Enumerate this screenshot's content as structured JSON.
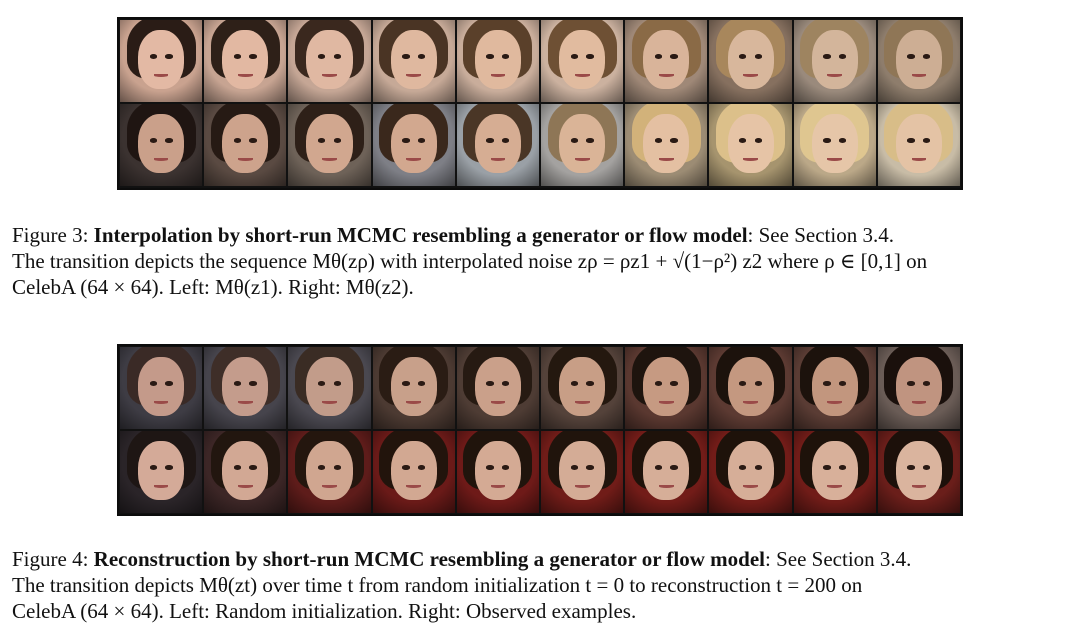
{
  "figure3": {
    "caption_label": "Figure 3:",
    "caption_title": "Interpolation by short-run MCMC resembling a generator or flow model",
    "caption_see": ": See Section 3.4.",
    "caption_line2": "The transition depicts the sequence Mθ(zρ) with interpolated noise zρ = ρz1 + √(1−ρ²) z2 where ρ ∈ [0,1] on",
    "caption_line3": "CelebA (64 × 64). Left: Mθ(z1). Right: Mθ(z2).",
    "rows": [
      {
        "tiles": [
          {
            "bg": "#c9a28f",
            "hair": "#2a1c16",
            "skin": "#e3b9a4"
          },
          {
            "bg": "#c7a492",
            "hair": "#2e2018",
            "skin": "#e2b8a2"
          },
          {
            "bg": "#c5a695",
            "hair": "#3a281e",
            "skin": "#e0b8a2"
          },
          {
            "bg": "#c6a997",
            "hair": "#4a3424",
            "skin": "#dfb89f"
          },
          {
            "bg": "#c9ad9b",
            "hair": "#5a402a",
            "skin": "#e0b99e"
          },
          {
            "bg": "#cbb19f",
            "hair": "#6e5034",
            "skin": "#e1bb9f"
          },
          {
            "bg": "#9f8877",
            "hair": "#8a6a46",
            "skin": "#d9b49a"
          },
          {
            "bg": "#86705f",
            "hair": "#a8875c",
            "skin": "#d8b79c"
          },
          {
            "bg": "#9a8a7c",
            "hair": "#9e8460",
            "skin": "#d3b59b"
          },
          {
            "bg": "#8e7d6c",
            "hair": "#8f7656",
            "skin": "#cdae94"
          }
        ]
      },
      {
        "tiles": [
          {
            "bg": "#3b3230",
            "hair": "#1f1512",
            "skin": "#caa08a"
          },
          {
            "bg": "#5a4a42",
            "hair": "#261a14",
            "skin": "#cda38c"
          },
          {
            "bg": "#6e6258",
            "hair": "#2e2018",
            "skin": "#d1a78f"
          },
          {
            "bg": "#7e7f86",
            "hair": "#3a281c",
            "skin": "#d2a88f"
          },
          {
            "bg": "#9aa0a6",
            "hair": "#4a3626",
            "skin": "#d6ad93"
          },
          {
            "bg": "#a4a2a0",
            "hair": "#8e7656",
            "skin": "#dab497"
          },
          {
            "bg": "#9c8c74",
            "hair": "#d2b27a",
            "skin": "#e4c0a2"
          },
          {
            "bg": "#a6946e",
            "hair": "#dcc08a",
            "skin": "#e6c4a6"
          },
          {
            "bg": "#bba888",
            "hair": "#dfc690",
            "skin": "#e6c6a8"
          },
          {
            "bg": "#c8bca6",
            "hair": "#d8bd88",
            "skin": "#e4c3a5"
          }
        ]
      }
    ]
  },
  "figure4": {
    "caption_label": "Figure 4:",
    "caption_title": "Reconstruction by short-run MCMC resembling a generator or flow model",
    "caption_see": ": See Section 3.4.",
    "caption_line2": "The transition depicts Mθ(zt) over time t from random initialization t = 0 to reconstruction t = 200 on",
    "caption_line3": "CelebA (64 × 64). Left: Random initialization. Right: Observed examples.",
    "rows": [
      {
        "tiles": [
          {
            "bg": "#3e3c44",
            "hair": "#3a2a26",
            "skin": "#c49a8a"
          },
          {
            "bg": "#46444c",
            "hair": "#3e2e28",
            "skin": "#c49c8c"
          },
          {
            "bg": "#4a4850",
            "hair": "#3a2c24",
            "skin": "#c29c8a"
          },
          {
            "bg": "#4c3a32",
            "hair": "#2a1c14",
            "skin": "#c8a08a"
          },
          {
            "bg": "#4e3c34",
            "hair": "#261a12",
            "skin": "#caa08a"
          },
          {
            "bg": "#54423a",
            "hair": "#24180f",
            "skin": "#c89e86"
          },
          {
            "bg": "#5a3830",
            "hair": "#1e140e",
            "skin": "#c69a82"
          },
          {
            "bg": "#5c3a32",
            "hair": "#1c120c",
            "skin": "#c49880"
          },
          {
            "bg": "#5a3c34",
            "hair": "#1c120c",
            "skin": "#c2967e"
          },
          {
            "bg": "#6a5c56",
            "hair": "#1a100c",
            "skin": "#c09480"
          }
        ]
      },
      {
        "tiles": [
          {
            "bg": "#2a2428",
            "hair": "#1e1614",
            "skin": "#d4aa98"
          },
          {
            "bg": "#3c2626",
            "hair": "#22160f",
            "skin": "#d2a894"
          },
          {
            "bg": "#5e1c1a",
            "hair": "#24160e",
            "skin": "#d0a690"
          },
          {
            "bg": "#6a1a18",
            "hair": "#22140c",
            "skin": "#d2a892"
          },
          {
            "bg": "#6e1a18",
            "hair": "#20140c",
            "skin": "#d4aa94"
          },
          {
            "bg": "#701c18",
            "hair": "#20140c",
            "skin": "#d4ac96"
          },
          {
            "bg": "#721c18",
            "hair": "#1e120a",
            "skin": "#d6ae98"
          },
          {
            "bg": "#721c18",
            "hair": "#1e120a",
            "skin": "#d6ae98"
          },
          {
            "bg": "#701c18",
            "hair": "#1e120a",
            "skin": "#d8b09a"
          },
          {
            "bg": "#6a1e1a",
            "hair": "#1c100a",
            "skin": "#dab49e"
          }
        ]
      }
    ]
  }
}
